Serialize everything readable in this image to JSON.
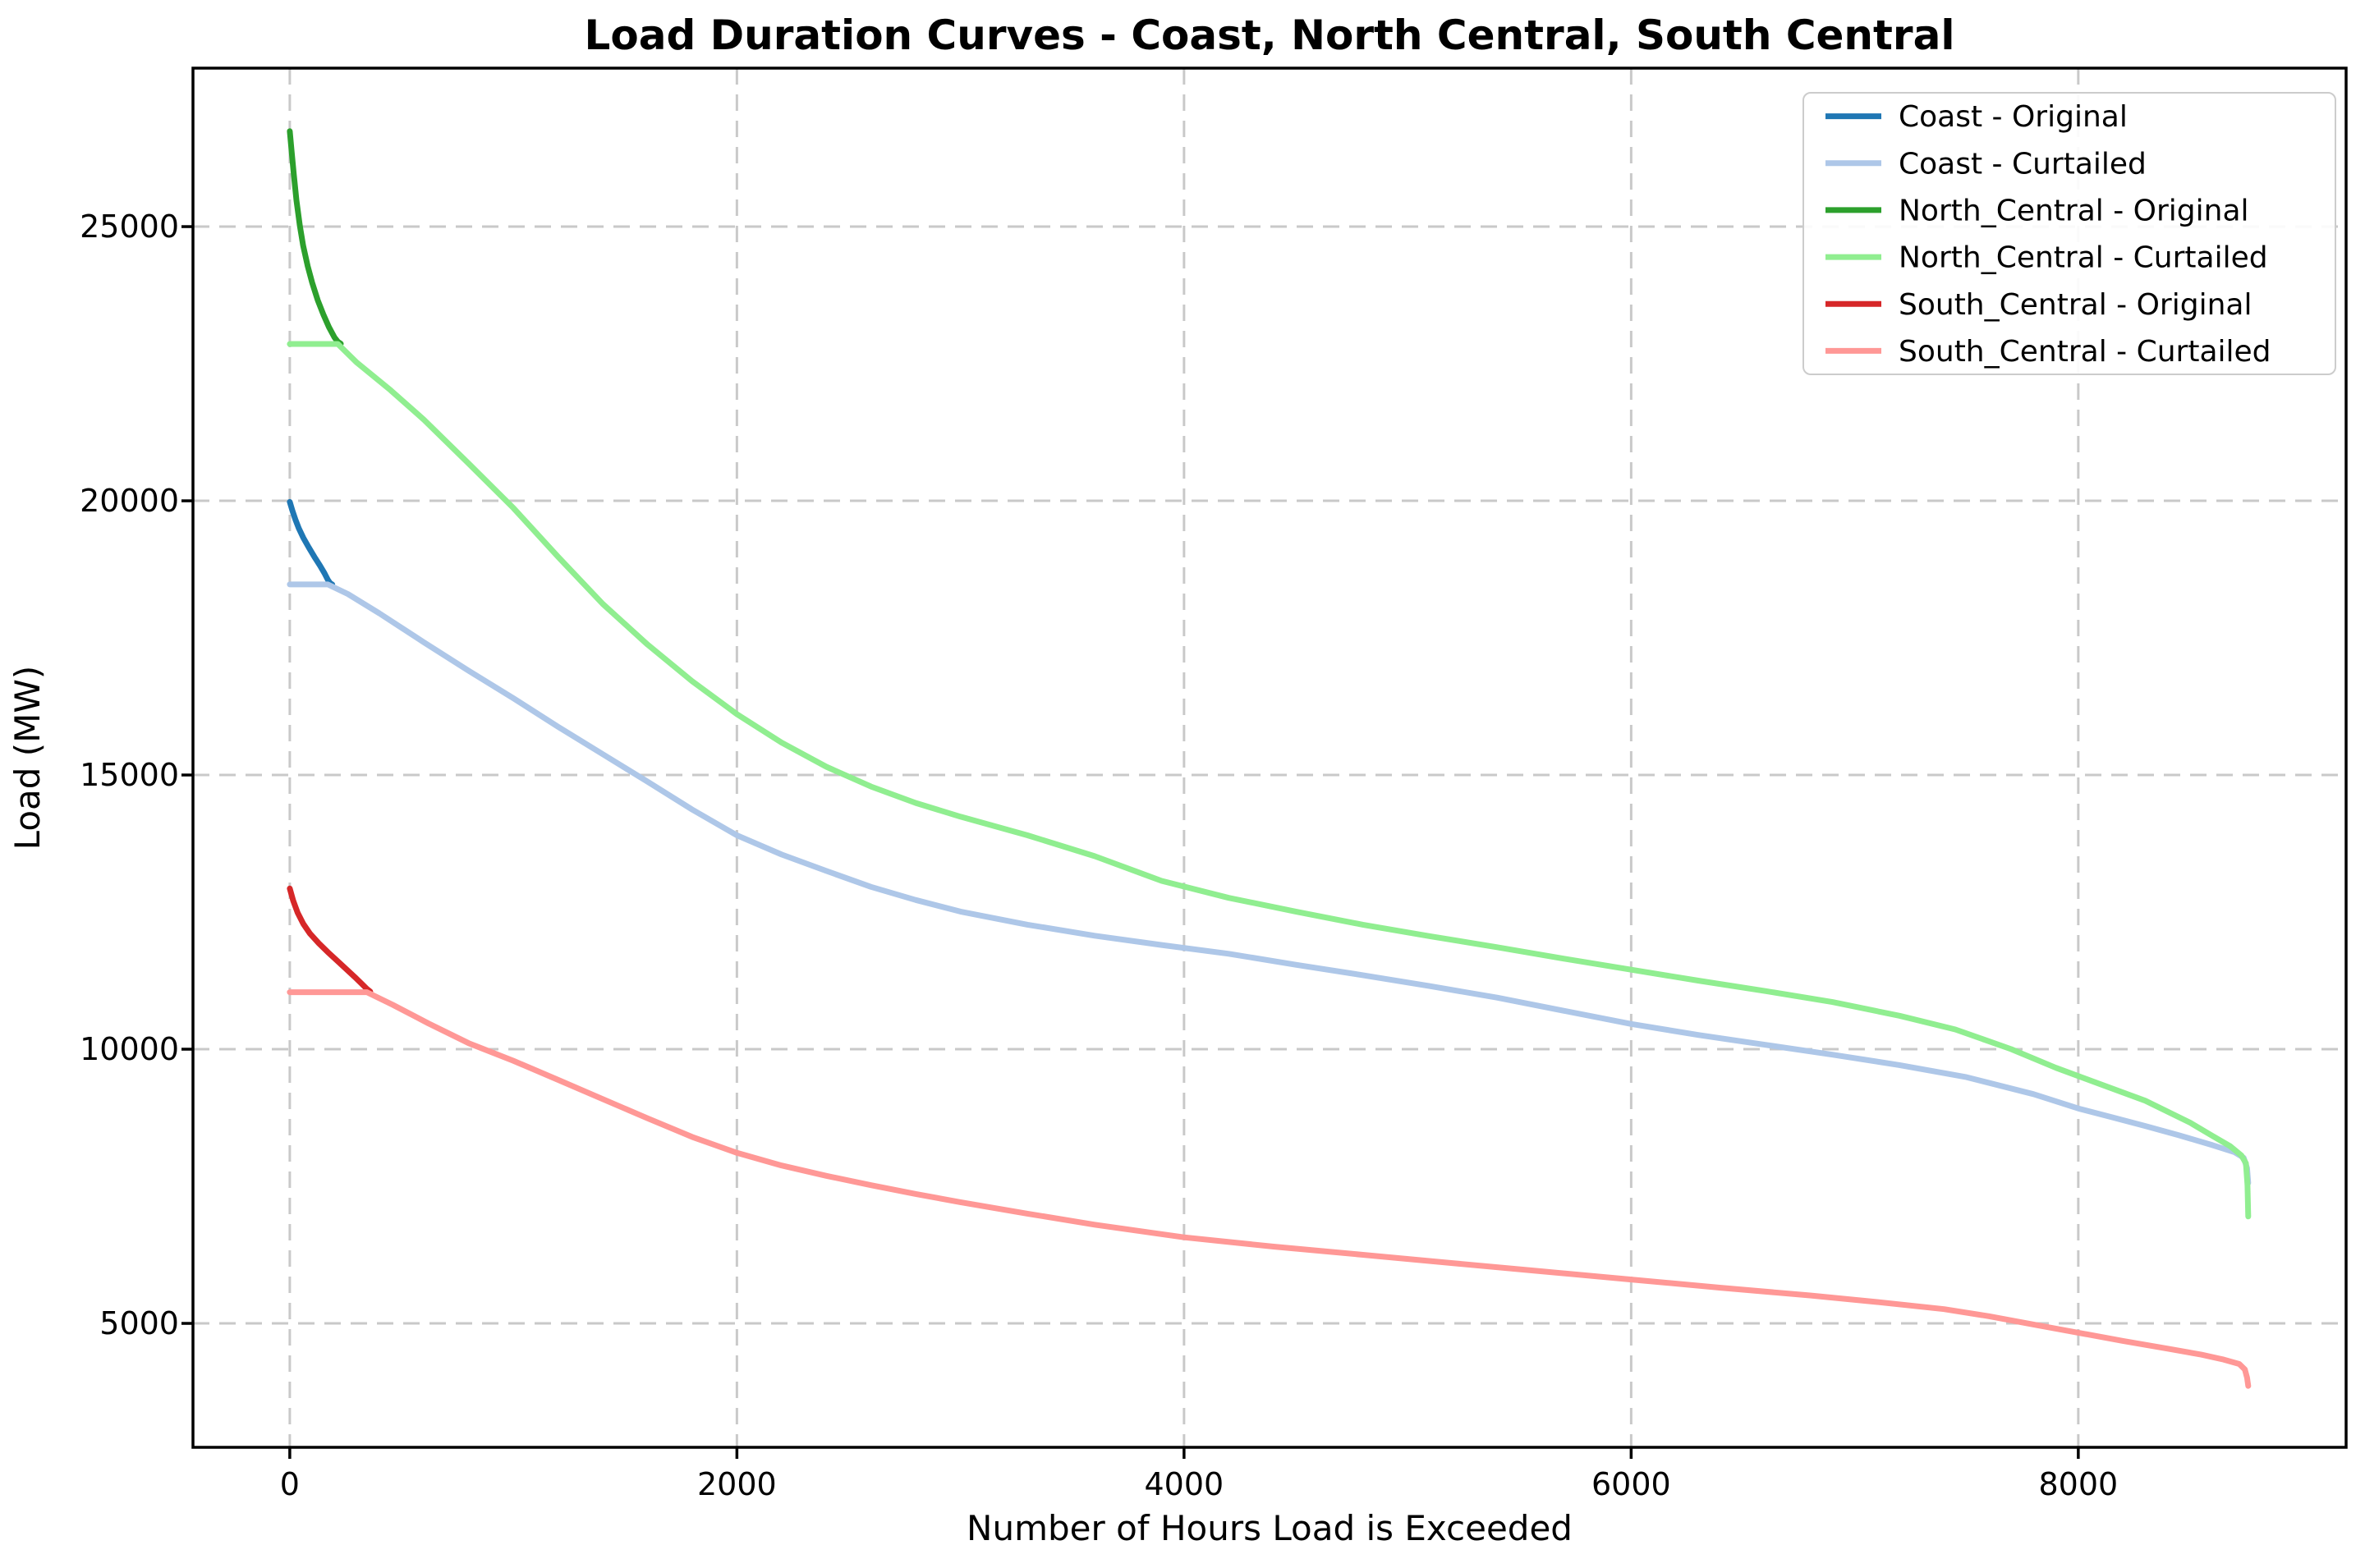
{
  "figure": {
    "title": "Load Duration Curves - Coast, North Central, South Central"
  },
  "chart_data": {
    "type": "line",
    "title": "Load Duration Curves - Coast, North Central, South Central",
    "xlabel": "Number of Hours Load is Exceeded",
    "ylabel": "Load (MW)",
    "xlim": [
      -433,
      9198
    ],
    "ylim": [
      2740,
      27890
    ],
    "xticks": [
      0,
      2000,
      4000,
      6000,
      8000
    ],
    "yticks": [
      5000,
      10000,
      15000,
      20000,
      25000
    ],
    "grid": true,
    "grid_style": "dashed",
    "legend_position": "upper right",
    "colors": {
      "grid": "#c9c9c9",
      "spine": "#000000",
      "coast_original": "#1f77b4",
      "coast_curtailed": "#aec7e8",
      "north_central_original": "#2ca02c",
      "north_central_curtailed": "#90ee90",
      "south_central_original": "#d62728",
      "south_central_curtailed": "#ff9896"
    },
    "series": [
      {
        "name": "Coast - Original",
        "color": "#1f77b4",
        "points": [
          [
            0,
            19980
          ],
          [
            12,
            19820
          ],
          [
            25,
            19660
          ],
          [
            40,
            19500
          ],
          [
            60,
            19330
          ],
          [
            85,
            19150
          ],
          [
            110,
            18980
          ],
          [
            135,
            18820
          ],
          [
            155,
            18680
          ],
          [
            170,
            18560
          ],
          [
            180,
            18500
          ],
          [
            190,
            18475
          ]
        ]
      },
      {
        "name": "Coast - Curtailed",
        "color": "#aec7e8",
        "points": [
          [
            0,
            18475
          ],
          [
            170,
            18475
          ],
          [
            260,
            18300
          ],
          [
            400,
            17950
          ],
          [
            600,
            17420
          ],
          [
            800,
            16900
          ],
          [
            1000,
            16400
          ],
          [
            1200,
            15880
          ],
          [
            1400,
            15380
          ],
          [
            1600,
            14880
          ],
          [
            1800,
            14370
          ],
          [
            2000,
            13900
          ],
          [
            2200,
            13550
          ],
          [
            2400,
            13250
          ],
          [
            2600,
            12960
          ],
          [
            2800,
            12720
          ],
          [
            3000,
            12510
          ],
          [
            3300,
            12270
          ],
          [
            3600,
            12070
          ],
          [
            3900,
            11900
          ],
          [
            4200,
            11740
          ],
          [
            4500,
            11540
          ],
          [
            4800,
            11350
          ],
          [
            5100,
            11150
          ],
          [
            5400,
            10940
          ],
          [
            5700,
            10700
          ],
          [
            6000,
            10460
          ],
          [
            6300,
            10260
          ],
          [
            6600,
            10080
          ],
          [
            6900,
            9900
          ],
          [
            7200,
            9710
          ],
          [
            7500,
            9490
          ],
          [
            7800,
            9180
          ],
          [
            8000,
            8920
          ],
          [
            8150,
            8760
          ],
          [
            8300,
            8600
          ],
          [
            8450,
            8430
          ],
          [
            8600,
            8250
          ],
          [
            8700,
            8120
          ],
          [
            8740,
            8020
          ],
          [
            8755,
            7830
          ],
          [
            8760,
            7560
          ]
        ]
      },
      {
        "name": "North_Central - Original",
        "color": "#2ca02c",
        "points": [
          [
            0,
            26740
          ],
          [
            8,
            26380
          ],
          [
            18,
            25950
          ],
          [
            30,
            25480
          ],
          [
            45,
            25020
          ],
          [
            60,
            24650
          ],
          [
            80,
            24280
          ],
          [
            100,
            23980
          ],
          [
            125,
            23660
          ],
          [
            150,
            23400
          ],
          [
            175,
            23170
          ],
          [
            200,
            22980
          ],
          [
            215,
            22900
          ],
          [
            228,
            22865
          ]
        ]
      },
      {
        "name": "North_Central - Curtailed",
        "color": "#90ee90",
        "points": [
          [
            0,
            22860
          ],
          [
            215,
            22860
          ],
          [
            300,
            22520
          ],
          [
            450,
            22020
          ],
          [
            600,
            21480
          ],
          [
            800,
            20680
          ],
          [
            1000,
            19870
          ],
          [
            1200,
            18980
          ],
          [
            1400,
            18120
          ],
          [
            1600,
            17380
          ],
          [
            1800,
            16710
          ],
          [
            2000,
            16110
          ],
          [
            2200,
            15590
          ],
          [
            2400,
            15150
          ],
          [
            2600,
            14790
          ],
          [
            2800,
            14490
          ],
          [
            3000,
            14240
          ],
          [
            3300,
            13900
          ],
          [
            3600,
            13520
          ],
          [
            3900,
            13070
          ],
          [
            4200,
            12760
          ],
          [
            4500,
            12510
          ],
          [
            4800,
            12270
          ],
          [
            5100,
            12060
          ],
          [
            5400,
            11860
          ],
          [
            5700,
            11650
          ],
          [
            6000,
            11450
          ],
          [
            6300,
            11250
          ],
          [
            6600,
            11060
          ],
          [
            6900,
            10860
          ],
          [
            7200,
            10610
          ],
          [
            7450,
            10360
          ],
          [
            7700,
            10000
          ],
          [
            7900,
            9660
          ],
          [
            8100,
            9360
          ],
          [
            8300,
            9060
          ],
          [
            8500,
            8660
          ],
          [
            8600,
            8420
          ],
          [
            8680,
            8230
          ],
          [
            8730,
            8060
          ],
          [
            8750,
            7920
          ],
          [
            8757,
            7520
          ],
          [
            8760,
            6950
          ]
        ]
      },
      {
        "name": "South_Central - Original",
        "color": "#d62728",
        "points": [
          [
            0,
            12930
          ],
          [
            15,
            12710
          ],
          [
            35,
            12490
          ],
          [
            60,
            12290
          ],
          [
            90,
            12110
          ],
          [
            130,
            11930
          ],
          [
            170,
            11770
          ],
          [
            210,
            11620
          ],
          [
            250,
            11470
          ],
          [
            290,
            11320
          ],
          [
            320,
            11200
          ],
          [
            345,
            11100
          ],
          [
            360,
            11050
          ]
        ]
      },
      {
        "name": "South_Central - Curtailed",
        "color": "#ff9896",
        "points": [
          [
            0,
            11040
          ],
          [
            345,
            11040
          ],
          [
            460,
            10810
          ],
          [
            620,
            10470
          ],
          [
            800,
            10110
          ],
          [
            1000,
            9790
          ],
          [
            1200,
            9440
          ],
          [
            1400,
            9090
          ],
          [
            1600,
            8740
          ],
          [
            1800,
            8400
          ],
          [
            2000,
            8110
          ],
          [
            2200,
            7880
          ],
          [
            2400,
            7690
          ],
          [
            2600,
            7520
          ],
          [
            2800,
            7360
          ],
          [
            3000,
            7210
          ],
          [
            3300,
            7000
          ],
          [
            3600,
            6800
          ],
          [
            4000,
            6570
          ],
          [
            4400,
            6400
          ],
          [
            4800,
            6250
          ],
          [
            5200,
            6100
          ],
          [
            5600,
            5950
          ],
          [
            6000,
            5800
          ],
          [
            6400,
            5650
          ],
          [
            6800,
            5510
          ],
          [
            7100,
            5390
          ],
          [
            7400,
            5260
          ],
          [
            7600,
            5130
          ],
          [
            7800,
            4980
          ],
          [
            8000,
            4830
          ],
          [
            8200,
            4680
          ],
          [
            8400,
            4540
          ],
          [
            8550,
            4430
          ],
          [
            8650,
            4340
          ],
          [
            8720,
            4260
          ],
          [
            8745,
            4160
          ],
          [
            8755,
            4010
          ],
          [
            8760,
            3860
          ]
        ]
      }
    ]
  }
}
